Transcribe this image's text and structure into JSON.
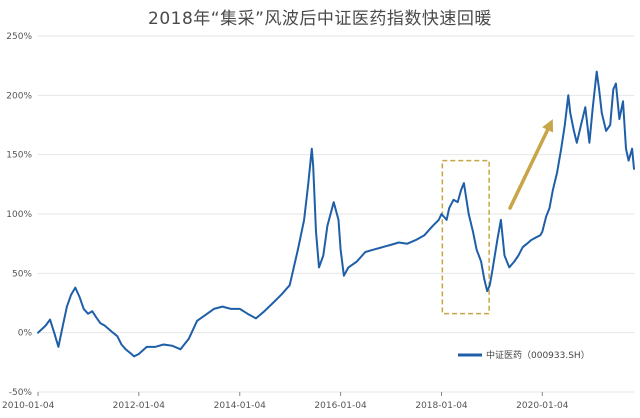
{
  "chart_data": {
    "type": "line",
    "title": "2018年“集采”风波后中证医药指数快速回暖",
    "xlabel": "",
    "ylabel": "",
    "ylim": [
      -0.5,
      2.5
    ],
    "y_ticks": [
      -0.5,
      0,
      0.5,
      1,
      1.5,
      2,
      2.5
    ],
    "y_tick_labels": [
      "-50%",
      "0%",
      "50%",
      "100%",
      "150%",
      "200%",
      "250%"
    ],
    "x_ticks": [
      "2010-01-04",
      "2012-01-04",
      "2014-01-04",
      "2016-01-04",
      "2018-01-04",
      "2020-01-04"
    ],
    "x_range": [
      "2010-01-04",
      "2021-10-29"
    ],
    "grid": "horizontal",
    "legend_position": "bottom-right",
    "series": [
      {
        "name": "中证医药（000933.SH）",
        "color": "#1f5fa8",
        "x": [
          "2010-01-04",
          "2010-02-01",
          "2010-03-01",
          "2010-04-01",
          "2010-05-01",
          "2010-06-01",
          "2010-07-01",
          "2010-08-01",
          "2010-09-01",
          "2010-10-01",
          "2010-11-01",
          "2010-12-01",
          "2011-01-01",
          "2011-02-01",
          "2011-03-01",
          "2011-04-01",
          "2011-05-01",
          "2011-06-01",
          "2011-07-01",
          "2011-08-01",
          "2011-09-01",
          "2011-10-01",
          "2011-11-01",
          "2011-12-01",
          "2012-01-04",
          "2012-03-01",
          "2012-05-01",
          "2012-07-01",
          "2012-09-01",
          "2012-11-01",
          "2013-01-01",
          "2013-03-01",
          "2013-05-01",
          "2013-07-01",
          "2013-09-01",
          "2013-11-01",
          "2014-01-04",
          "2014-03-01",
          "2014-05-01",
          "2014-07-01",
          "2014-09-01",
          "2014-11-01",
          "2015-01-01",
          "2015-03-01",
          "2015-04-15",
          "2015-05-15",
          "2015-06-10",
          "2015-06-20",
          "2015-07-10",
          "2015-08-01",
          "2015-09-01",
          "2015-10-01",
          "2015-11-15",
          "2015-12-20",
          "2016-01-04",
          "2016-01-28",
          "2016-03-01",
          "2016-05-01",
          "2016-07-01",
          "2016-09-01",
          "2016-11-01",
          "2017-01-01",
          "2017-03-01",
          "2017-05-01",
          "2017-07-01",
          "2017-09-01",
          "2017-11-01",
          "2017-12-15",
          "2018-01-04",
          "2018-02-10",
          "2018-03-01",
          "2018-04-01",
          "2018-05-01",
          "2018-05-25",
          "2018-06-15",
          "2018-07-20",
          "2018-08-20",
          "2018-09-15",
          "2018-10-18",
          "2018-11-10",
          "2018-12-01",
          "2018-12-20",
          "2019-01-04",
          "2019-02-15",
          "2019-03-10",
          "2019-04-05",
          "2019-05-10",
          "2019-06-15",
          "2019-07-15",
          "2019-08-15",
          "2019-09-15",
          "2019-10-15",
          "2019-11-15",
          "2019-12-20",
          "2020-01-04",
          "2020-02-01",
          "2020-02-25",
          "2020-03-20",
          "2020-04-20",
          "2020-05-20",
          "2020-06-15",
          "2020-07-10",
          "2020-07-25",
          "2020-08-20",
          "2020-09-10",
          "2020-10-10",
          "2020-11-10",
          "2020-12-10",
          "2021-01-04",
          "2021-02-01",
          "2021-02-18",
          "2021-03-10",
          "2021-04-10",
          "2021-05-10",
          "2021-06-01",
          "2021-06-20",
          "2021-07-15",
          "2021-08-10",
          "2021-09-01",
          "2021-09-20",
          "2021-10-15",
          "2021-10-29"
        ],
        "values": [
          0.0,
          0.03,
          0.06,
          0.11,
          0.0,
          -0.12,
          0.05,
          0.22,
          0.32,
          0.38,
          0.3,
          0.2,
          0.16,
          0.18,
          0.13,
          0.08,
          0.06,
          0.03,
          0.0,
          -0.03,
          -0.1,
          -0.14,
          -0.17,
          -0.2,
          -0.18,
          -0.12,
          -0.12,
          -0.1,
          -0.11,
          -0.14,
          -0.05,
          0.1,
          0.15,
          0.2,
          0.22,
          0.2,
          0.2,
          0.16,
          0.12,
          0.18,
          0.25,
          0.32,
          0.4,
          0.7,
          0.95,
          1.25,
          1.55,
          1.4,
          0.85,
          0.55,
          0.65,
          0.9,
          1.1,
          0.95,
          0.7,
          0.48,
          0.55,
          0.6,
          0.68,
          0.7,
          0.72,
          0.74,
          0.76,
          0.75,
          0.78,
          0.82,
          0.9,
          0.95,
          1.0,
          0.95,
          1.05,
          1.12,
          1.1,
          1.2,
          1.26,
          1.0,
          0.85,
          0.7,
          0.6,
          0.45,
          0.35,
          0.4,
          0.5,
          0.8,
          0.95,
          0.65,
          0.55,
          0.6,
          0.65,
          0.72,
          0.75,
          0.78,
          0.8,
          0.82,
          0.85,
          0.98,
          1.05,
          1.2,
          1.35,
          1.55,
          1.75,
          2.0,
          1.85,
          1.7,
          1.6,
          1.75,
          1.9,
          1.6,
          1.9,
          2.2,
          2.05,
          1.85,
          1.7,
          1.75,
          2.05,
          2.1,
          1.8,
          1.95,
          1.55,
          1.45,
          1.55,
          1.38
        ]
      }
    ],
    "annotations": [
      {
        "type": "dashed-box",
        "color": "#c8a548",
        "x_start": "2018-01-10",
        "x_end": "2018-12-15",
        "y_top": 1.45,
        "y_bottom": 0.16
      },
      {
        "type": "arrow",
        "color": "#c8a548",
        "x_start": "2019-05-15",
        "y_start": 1.05,
        "x_end": "2020-03-20",
        "y_end": 1.8
      }
    ]
  }
}
